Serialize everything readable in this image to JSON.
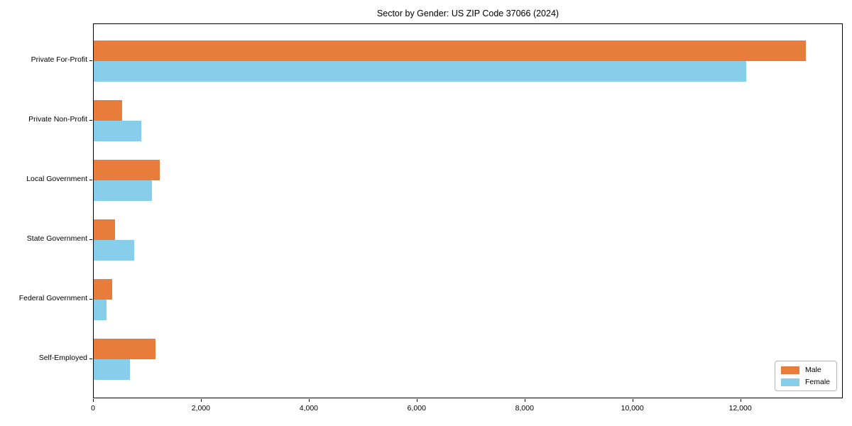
{
  "title": "Sector by Gender: US ZIP Code 37066 (2024)",
  "chart_data": {
    "type": "bar",
    "orientation": "horizontal",
    "title": "Sector by Gender: US ZIP Code 37066 (2024)",
    "xlabel": "",
    "ylabel": "",
    "categories": [
      "Private For-Profit",
      "Private Non-Profit",
      "Local Government",
      "State Government",
      "Federal Government",
      "Self-Employed"
    ],
    "series": [
      {
        "name": "Male",
        "color": "#e87d3b",
        "values": [
          13200,
          530,
          1220,
          400,
          345,
          1150
        ]
      },
      {
        "name": "Female",
        "color": "#87ceeb",
        "values": [
          12100,
          880,
          1080,
          750,
          235,
          665
        ]
      }
    ],
    "xlim": [
      0,
      13900
    ],
    "xticks": [
      0,
      2000,
      4000,
      6000,
      8000,
      10000,
      12000
    ],
    "xtick_labels": [
      "0",
      "2,000",
      "4,000",
      "6,000",
      "8,000",
      "10,000",
      "12,000"
    ],
    "grid": false,
    "legend_position": "lower right",
    "legend_entries": [
      "Male",
      "Female"
    ]
  },
  "colors": {
    "male_bar": "#e87d3b",
    "female_bar": "#87ceeb",
    "axis": "#000000",
    "legend_border": "#b4b4b4",
    "background": "#ffffff"
  }
}
